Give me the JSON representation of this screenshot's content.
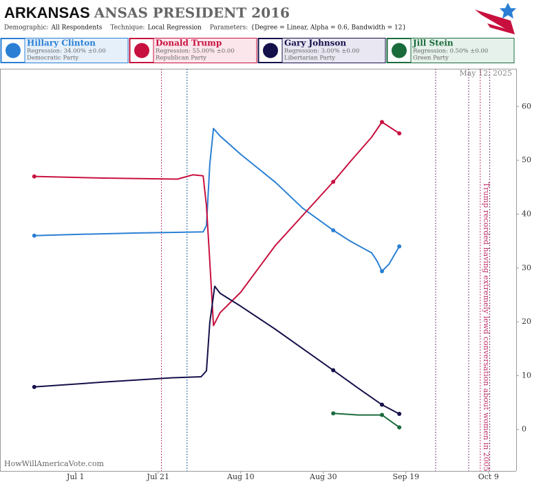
{
  "chart_data": {
    "type": "line",
    "title": "ARKANSAS",
    "title_suffix": "ANSAS PRESIDENT 2016",
    "parameters": [
      {
        "label": "Demographic:",
        "value": "All Respondents"
      },
      {
        "label": "Technique:",
        "value": "Local Regression"
      },
      {
        "label": "Parameters:",
        "value": "{Degree = Linear, Alpha = 0.6, Bandwidth = 12}"
      }
    ],
    "date_stamp": "May 12, 2025",
    "source": "HowWillAmericaVote.com",
    "xlim": [
      164.7,
      289.7
    ],
    "xticks": [
      {
        "value": 183,
        "label": "Jul 1"
      },
      {
        "value": 203,
        "label": "Jul 21"
      },
      {
        "value": 223,
        "label": "Aug 10"
      },
      {
        "value": 243,
        "label": "Aug 30"
      },
      {
        "value": 263,
        "label": "Sep 19"
      },
      {
        "value": 283,
        "label": "Oct 9"
      }
    ],
    "ylim": [
      -7.7,
      67
    ],
    "yticks": [
      0,
      10,
      20,
      30,
      40,
      50,
      60
    ],
    "events": [
      {
        "x": 203.8,
        "color": "#c0306a"
      },
      {
        "x": 210,
        "color": "#1a5aa0"
      },
      {
        "x": 270.2,
        "color": "#7a3a7a"
      },
      {
        "x": 278.2,
        "color": "#7a3a7a"
      },
      {
        "x": 281,
        "color": "#c0306a",
        "label": "Trump recorded having extremely lewd conversation about women in 2005"
      },
      {
        "x": 283.3,
        "color": "#7a3a7a"
      }
    ],
    "series": [
      {
        "name": "Hillary Clinton",
        "regression": "Regression: 34.00% ±0.00",
        "party": "Democratic Party",
        "color": "#2a7fd4",
        "x": [
          173.0,
          181.4,
          198.0,
          213.9,
          214.7,
          215.5,
          216.4,
          218.0,
          223.0,
          231.4,
          238.0,
          245.4,
          249.7,
          254.7,
          256.0,
          257.2,
          258.9,
          261.4
        ],
        "values": [
          36.0,
          36.2,
          36.5,
          36.7,
          37.9,
          49.2,
          55.9,
          54.5,
          51.1,
          45.9,
          41.1,
          37.0,
          34.9,
          32.8,
          31.3,
          29.4,
          30.7,
          34.0
        ],
        "points_x": [
          173.0,
          245.4,
          257.2,
          261.4
        ],
        "points_values": [
          36.0,
          37.0,
          29.4,
          34.0
        ]
      },
      {
        "name": "Donald Trump",
        "regression": "Regression: 55.00% ±0.00",
        "party": "Republican Party",
        "color": "#c8103e",
        "x": [
          173.0,
          189.7,
          207.7,
          211.4,
          213.9,
          214.7,
          215.5,
          216.4,
          218.0,
          223.0,
          231.4,
          245.4,
          249.7,
          254.7,
          257.2,
          261.4
        ],
        "values": [
          47.0,
          46.7,
          46.5,
          47.3,
          47.1,
          41.5,
          31.3,
          19.3,
          21.7,
          25.5,
          34.2,
          46.0,
          49.9,
          54.3,
          57.1,
          55.0
        ],
        "points_x": [
          173.0,
          245.4,
          257.2,
          261.4
        ],
        "points_values": [
          47.0,
          46.0,
          57.1,
          55.0
        ]
      },
      {
        "name": "Gary Johnson",
        "regression": "Regression: 3.00% ±0.00",
        "party": "Libertarian Party",
        "color": "#14104a",
        "x": [
          173.0,
          189.7,
          206.4,
          213.4,
          214.7,
          215.5,
          216.7,
          218.0,
          223.0,
          231.4,
          245.4,
          251.4,
          257.2,
          261.4
        ],
        "values": [
          7.9,
          8.8,
          9.6,
          9.8,
          10.9,
          19.8,
          26.6,
          25.3,
          22.9,
          18.6,
          11.0,
          7.7,
          4.6,
          2.9
        ],
        "points_x": [
          173.0,
          245.4,
          257.2,
          261.4
        ],
        "points_values": [
          7.9,
          11.0,
          4.6,
          2.9
        ]
      },
      {
        "name": "Jill Stein",
        "regression": "Regression: 0.50% ±0.00",
        "party": "Green Party",
        "color": "#1a6b3c",
        "x": [
          245.4,
          251.4,
          257.2,
          261.4
        ],
        "values": [
          3.0,
          2.7,
          2.7,
          0.4
        ],
        "points_x": [
          245.4,
          257.2,
          261.4
        ],
        "points_values": [
          3.0,
          2.7,
          0.4
        ]
      }
    ]
  }
}
